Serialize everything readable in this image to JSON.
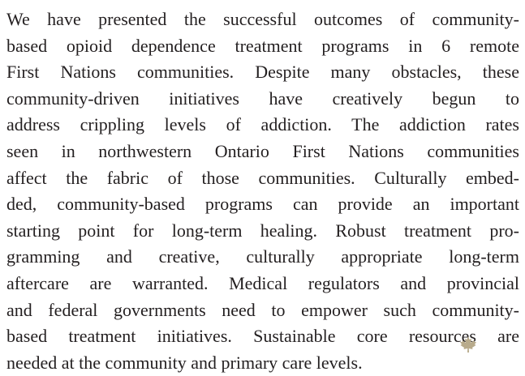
{
  "paragraph": {
    "lines": [
      "We have presented the successful outcomes of community-",
      "based opioid dependence treatment programs in 6 remote",
      "First Nations communities. Despite many obstacles, these",
      "community-driven initiatives have creatively begun to",
      "address crippling levels of addiction. The addiction rates",
      "seen in northwestern Ontario First Nations communities",
      "affect the fabric of those communities. Culturally embed-",
      "ded, community-based programs can provide an important",
      "starting point for long-term healing. Robust treatment pro-",
      "gramming and creative, culturally appropriate long-term",
      "aftercare are warranted. Medical regulators and provincial",
      "and federal governments need to empower such community-",
      "based treatment initiatives. Sustainable core resources are",
      "needed at the community and primary care levels."
    ]
  }
}
